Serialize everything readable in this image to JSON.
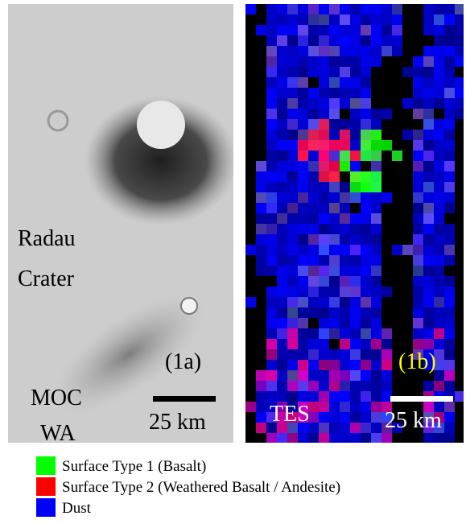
{
  "panel_a": {
    "label_lines": [
      "Radau",
      "Crater"
    ],
    "instrument_lines": [
      "MOC",
      "WA"
    ],
    "tag": "(1a)",
    "scale": "25 km"
  },
  "panel_b": {
    "instrument": "TES",
    "tag": "(1b)",
    "scale": "25 km"
  },
  "legend": [
    {
      "label": "Surface Type 1 (Basalt)",
      "color": "#00ff00"
    },
    {
      "label": "Surface Type 2 (Weathered Basalt / Andesite)",
      "color": "#ff0000"
    },
    {
      "label": "Dust",
      "color": "#0000ff"
    }
  ]
}
